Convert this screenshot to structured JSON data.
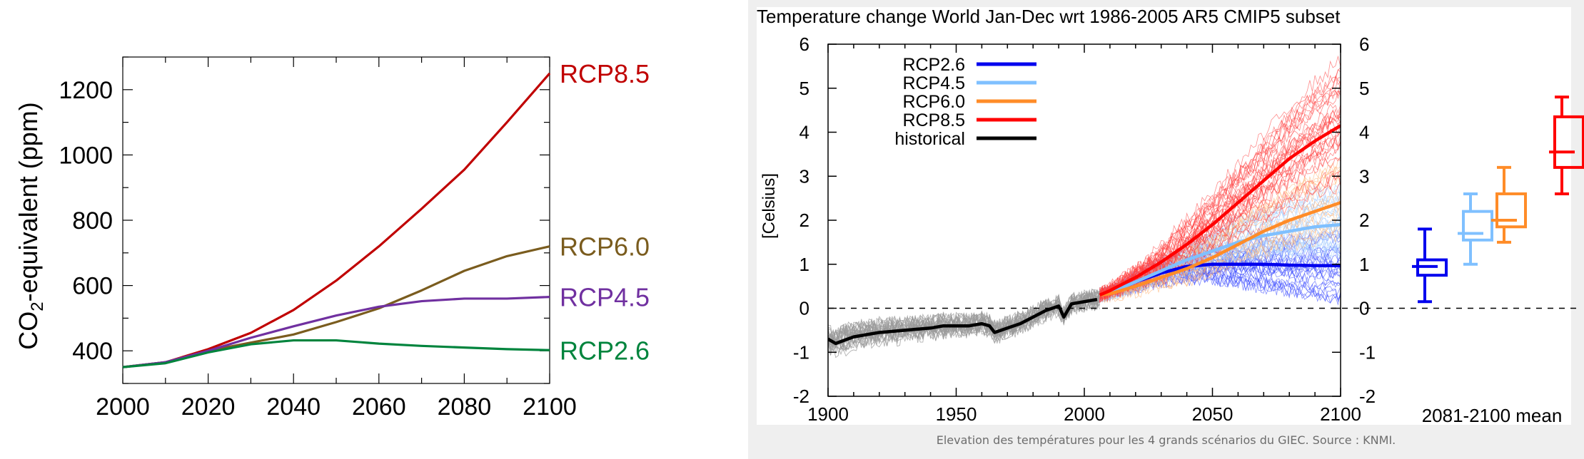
{
  "caption": "Elevation des températures pour les 4 grands scénarios du GIEC. Source : KNMI.",
  "colors": {
    "rcp85_left": "#c00000",
    "rcp60_left": "#7a5c1e",
    "rcp45_left": "#7030a0",
    "rcp26_left": "#00843d",
    "rcp26_right": "#0000ee",
    "rcp45_right": "#7fc0ff",
    "rcp60_right": "#ff8c28",
    "rcp85_right": "#ff0000",
    "historical": "#000000"
  },
  "chart_data": [
    {
      "type": "line",
      "title": "",
      "xlabel": "",
      "ylabel": "CO2-equivalent (ppm)",
      "ylabel_main": "CO",
      "ylabel_sub": "2",
      "ylabel_rest": "-equivalent (ppm)",
      "xlim": [
        2000,
        2100
      ],
      "ylim": [
        300,
        1300
      ],
      "x_ticks": [
        2000,
        2020,
        2040,
        2060,
        2080,
        2100
      ],
      "y_ticks": [
        400,
        600,
        800,
        1000,
        1200
      ],
      "x": [
        2000,
        2010,
        2020,
        2030,
        2040,
        2050,
        2060,
        2070,
        2080,
        2090,
        2100
      ],
      "series": [
        {
          "name": "RCP8.5",
          "color": "#c00000",
          "values": [
            350,
            365,
            405,
            455,
            525,
            615,
            720,
            835,
            955,
            1100,
            1250
          ]
        },
        {
          "name": "RCP6.0",
          "color": "#7a5c1e",
          "values": [
            350,
            365,
            400,
            425,
            450,
            488,
            530,
            585,
            645,
            690,
            720
          ]
        },
        {
          "name": "RCP4.5",
          "color": "#7030a0",
          "values": [
            350,
            365,
            400,
            440,
            475,
            508,
            535,
            552,
            560,
            560,
            565
          ]
        },
        {
          "name": "RCP2.6",
          "color": "#00843d",
          "values": [
            350,
            362,
            395,
            420,
            432,
            432,
            422,
            415,
            410,
            405,
            402
          ]
        }
      ],
      "grid": false,
      "legend": "right-end labels"
    },
    {
      "type": "line",
      "title": "Temperature change World Jan-Dec wrt 1986-2005 AR5 CMIP5 subset",
      "xlabel": "",
      "ylabel": "[Celsius]",
      "xlim": [
        1900,
        2100
      ],
      "ylim": [
        -2,
        6
      ],
      "x_ticks": [
        1900,
        1950,
        2000,
        2050,
        2100
      ],
      "y_ticks": [
        -2,
        -1,
        0,
        1,
        2,
        3,
        4,
        5,
        6
      ],
      "grid": false,
      "legend": "top-left",
      "series": [
        {
          "name": "RCP2.6",
          "color": "#0000ee",
          "x": [
            2006,
            2010,
            2020,
            2030,
            2040,
            2050,
            2060,
            2070,
            2080,
            2090,
            2100
          ],
          "values": [
            0.3,
            0.35,
            0.6,
            0.8,
            0.95,
            1.0,
            1.0,
            1.0,
            0.98,
            0.97,
            0.97
          ]
        },
        {
          "name": "RCP4.5",
          "color": "#7fc0ff",
          "x": [
            2006,
            2010,
            2020,
            2030,
            2040,
            2050,
            2060,
            2070,
            2080,
            2090,
            2100
          ],
          "values": [
            0.3,
            0.35,
            0.6,
            0.85,
            1.1,
            1.3,
            1.5,
            1.65,
            1.75,
            1.85,
            1.9
          ]
        },
        {
          "name": "RCP6.0",
          "color": "#ff8c28",
          "x": [
            2006,
            2010,
            2020,
            2030,
            2040,
            2050,
            2060,
            2070,
            2080,
            2090,
            2100
          ],
          "values": [
            0.3,
            0.33,
            0.5,
            0.7,
            0.9,
            1.15,
            1.45,
            1.75,
            2.0,
            2.2,
            2.4
          ]
        },
        {
          "name": "RCP8.5",
          "color": "#ff0000",
          "x": [
            2006,
            2010,
            2020,
            2030,
            2040,
            2050,
            2060,
            2070,
            2080,
            2090,
            2100
          ],
          "values": [
            0.3,
            0.4,
            0.7,
            1.05,
            1.45,
            1.9,
            2.4,
            2.9,
            3.4,
            3.8,
            4.15
          ]
        },
        {
          "name": "historical",
          "color": "#000000",
          "x": [
            1900,
            1903,
            1910,
            1920,
            1930,
            1940,
            1945,
            1950,
            1955,
            1960,
            1963,
            1965,
            1970,
            1975,
            1980,
            1985,
            1990,
            1992,
            1995,
            2000,
            2005
          ],
          "values": [
            -0.7,
            -0.8,
            -0.65,
            -0.55,
            -0.5,
            -0.45,
            -0.4,
            -0.4,
            -0.4,
            -0.35,
            -0.4,
            -0.55,
            -0.45,
            -0.35,
            -0.2,
            -0.05,
            0.05,
            -0.2,
            0.1,
            0.15,
            0.2
          ]
        }
      ],
      "boxplots": {
        "label": "2081-2100 mean",
        "items": [
          {
            "name": "RCP2.6",
            "color": "#0000ee",
            "min": 0.15,
            "q1": 0.75,
            "median": 0.95,
            "q3": 1.1,
            "max": 1.8
          },
          {
            "name": "RCP4.5",
            "color": "#7fc0ff",
            "min": 1.0,
            "q1": 1.55,
            "median": 1.7,
            "q3": 2.2,
            "max": 2.6
          },
          {
            "name": "RCP6.0",
            "color": "#ff8c28",
            "min": 1.5,
            "q1": 1.85,
            "median": 2.0,
            "q3": 2.6,
            "max": 3.2
          },
          {
            "name": "RCP8.5",
            "color": "#ff0000",
            "min": 2.6,
            "q1": 3.2,
            "median": 3.55,
            "q3": 4.35,
            "max": 4.8
          }
        ]
      }
    }
  ]
}
